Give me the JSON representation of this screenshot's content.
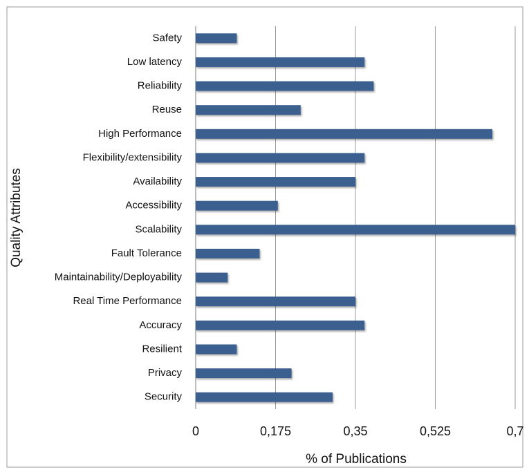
{
  "chart_data": {
    "type": "barh",
    "xlabel": "% of Publications",
    "ylabel": "Quality Attributes",
    "categories": [
      "Safety",
      "Low latency",
      "Reliability",
      "Reuse",
      "High Performance",
      "Flexibility/extensibility",
      "Availability",
      "Accessibility",
      "Scalability",
      "Fault Tolerance",
      "Maintainability/Deployability",
      "Real Time Performance",
      "Accuracy",
      "Resilient",
      "Privacy",
      "Security"
    ],
    "values": [
      0.09,
      0.37,
      0.39,
      0.23,
      0.65,
      0.37,
      0.35,
      0.18,
      0.7,
      0.14,
      0.07,
      0.35,
      0.37,
      0.09,
      0.21,
      0.3
    ],
    "color": "#3b5f8f",
    "xlim": [
      0,
      0.7
    ],
    "xticks": [
      0,
      {
        "value": 0.175,
        "label": "0,175"
      },
      {
        "value": 0.35,
        "label": "0,35"
      },
      {
        "value": 0.525,
        "label": "0,525"
      },
      {
        "value": 0.7,
        "label": "0,7"
      }
    ],
    "grid": true
  }
}
